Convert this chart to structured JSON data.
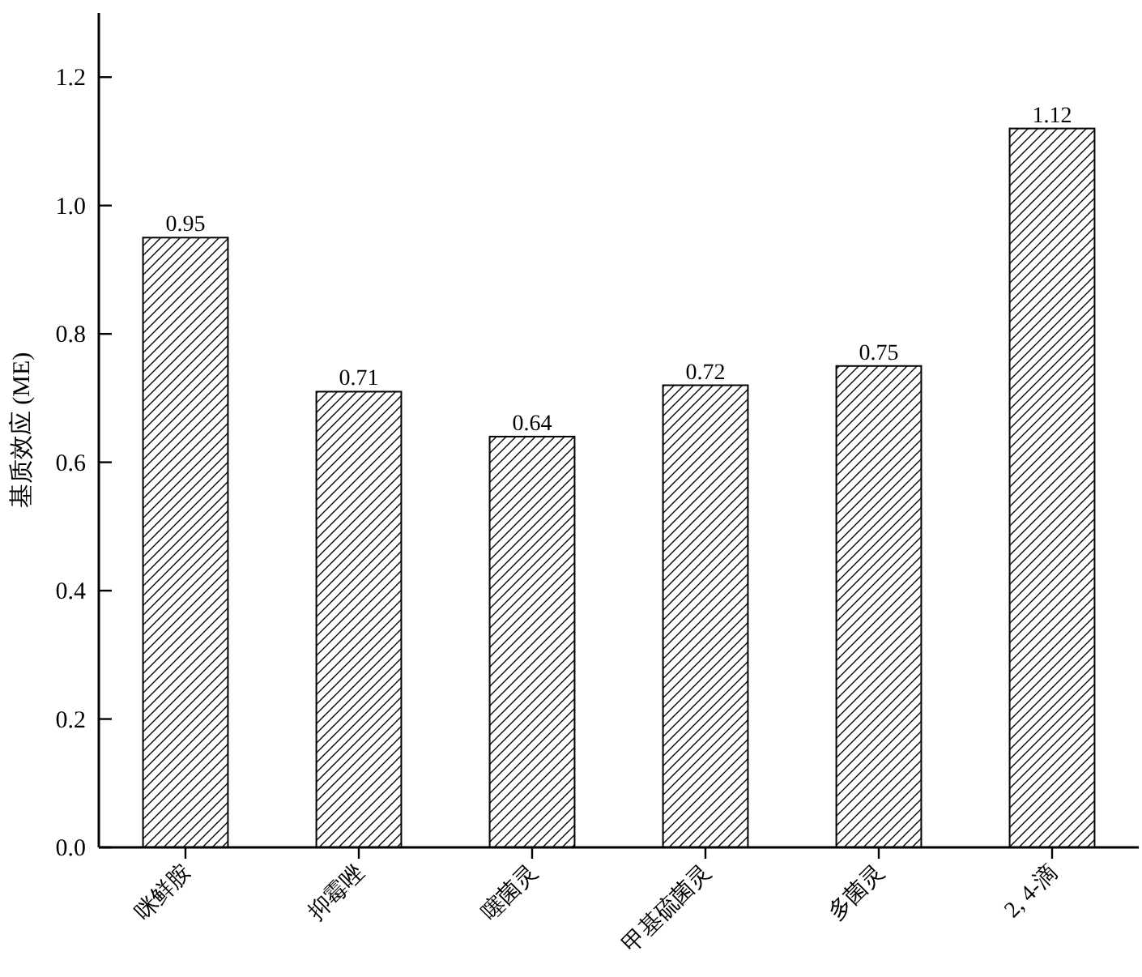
{
  "chart_data": {
    "type": "bar",
    "ylabel": "基质效应 (ME)",
    "categories": [
      "咪鲜胺",
      "抑霉唑",
      "噻菌灵",
      "甲基硫菌灵",
      "多菌灵",
      "2, 4-滴"
    ],
    "values": [
      0.95,
      0.71,
      0.64,
      0.72,
      0.75,
      1.12
    ],
    "color": "#000000",
    "ylim": [
      0,
      1.3
    ],
    "yticks": [
      {
        "value": 0,
        "label": "0.0"
      },
      {
        "value": 0.2,
        "label": "0.2"
      },
      {
        "value": 0.4,
        "label": "0.4"
      },
      {
        "value": 0.6,
        "label": "0.6"
      },
      {
        "value": 0.8,
        "label": "0.8"
      },
      {
        "value": 1.0,
        "label": "1.0"
      },
      {
        "value": 1.2,
        "label": "1.2"
      }
    ],
    "data_labels": true,
    "grid": false
  }
}
